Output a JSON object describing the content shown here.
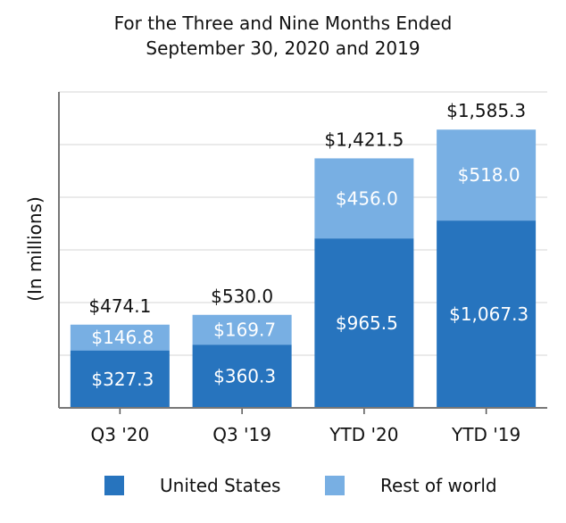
{
  "chart_data": {
    "type": "bar",
    "stacked": true,
    "title": [
      "For the Three and Nine Months Ended",
      "September 30, 2020 and 2019"
    ],
    "ylabel": "(In millions)",
    "xlabel": "",
    "categories": [
      "Q3 '20",
      "Q3 '19",
      "YTD '20",
      "YTD '19"
    ],
    "ylim": [
      0,
      1800
    ],
    "grid": true,
    "series": [
      {
        "name": "United States",
        "color": "#2774be",
        "values": [
          327.3,
          360.3,
          965.5,
          1067.3
        ],
        "labels": [
          "$327.3",
          "$360.3",
          "$965.5",
          "$1,067.3"
        ]
      },
      {
        "name": "Rest of world",
        "color": "#78afe3",
        "values": [
          146.8,
          169.7,
          456.0,
          518.0
        ],
        "labels": [
          "$146.8",
          "$169.7",
          "$456.0",
          "$518.0"
        ]
      }
    ],
    "totals": [
      "$474.1",
      "$530.0",
      "$1,421.5",
      "$1,585.3"
    ],
    "legend_position": "bottom"
  }
}
